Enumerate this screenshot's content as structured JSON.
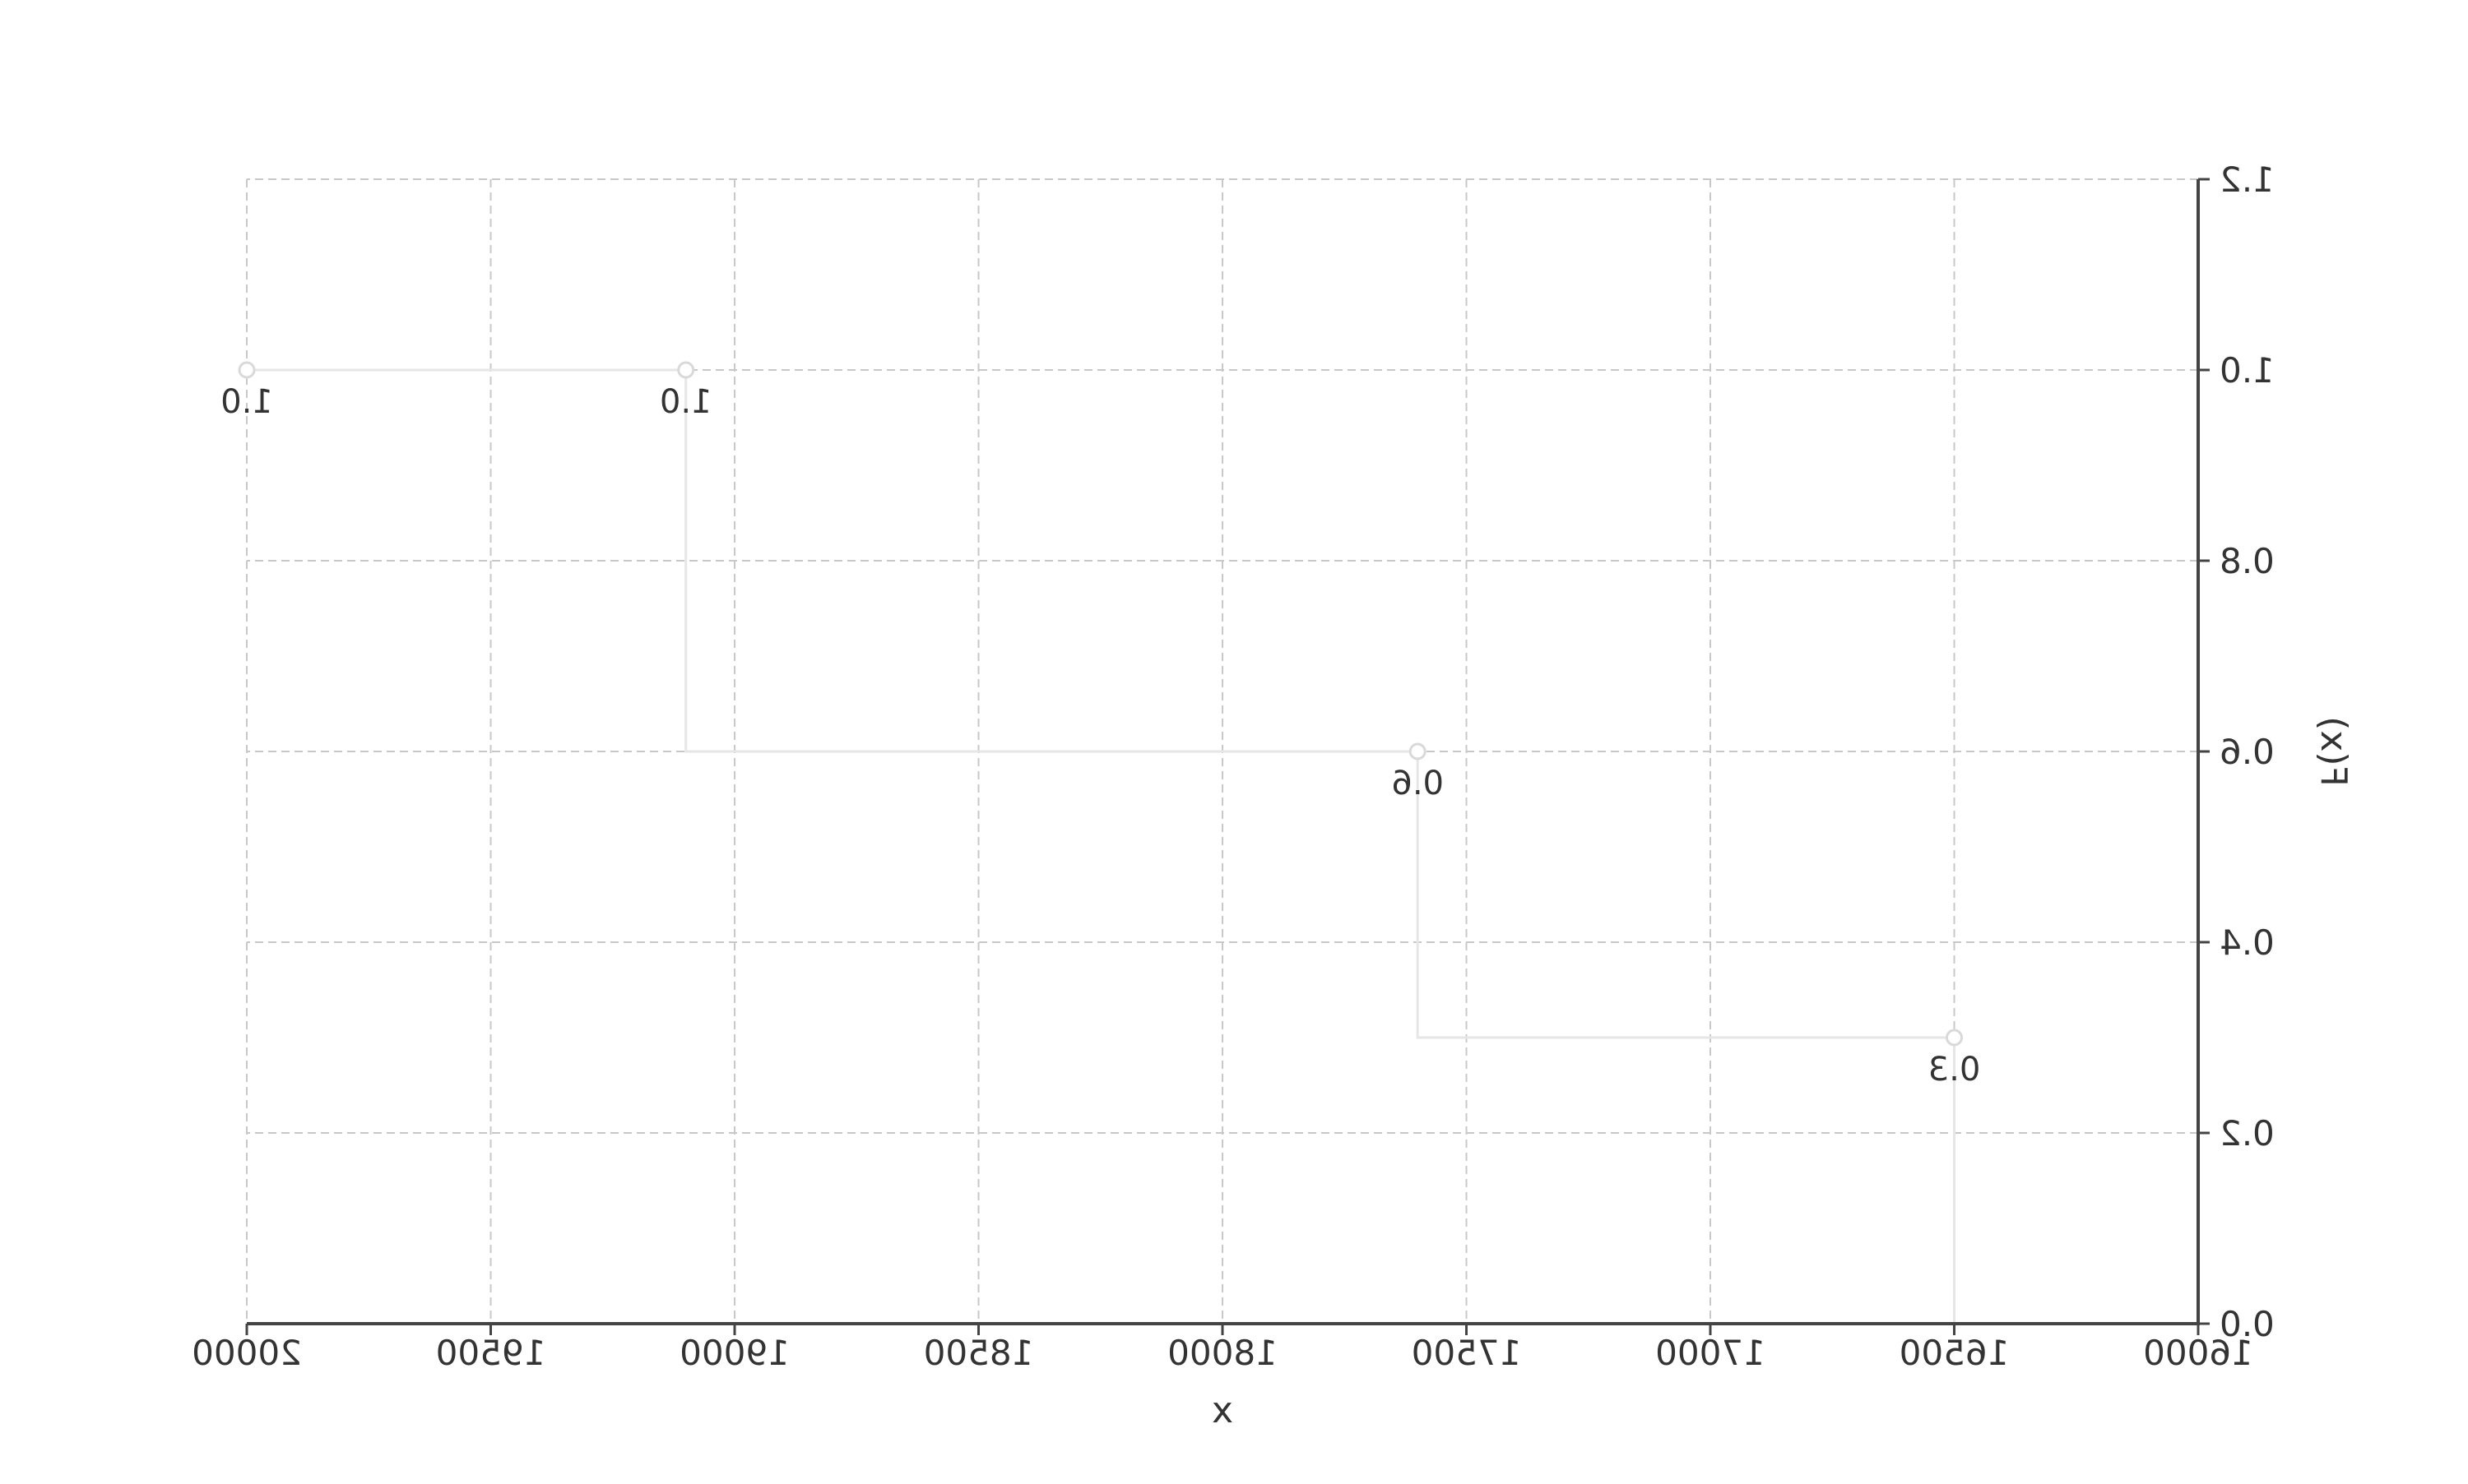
{
  "chart_data": {
    "type": "line",
    "subtype": "step-cdf",
    "title": "",
    "xlabel": "x",
    "ylabel": "F(x)",
    "xlim": [
      16000,
      20000
    ],
    "ylim": [
      0.0,
      1.2
    ],
    "grid": true,
    "x_ticks": [
      16000,
      16500,
      17000,
      17500,
      18000,
      18500,
      19000,
      19500,
      20000
    ],
    "x_tick_labels": [
      "16000",
      "16500",
      "17000",
      "17500",
      "18000",
      "18500",
      "19000",
      "19500",
      "20000"
    ],
    "y_ticks": [
      0.0,
      0.2,
      0.4,
      0.6,
      0.8,
      1.0,
      1.2
    ],
    "y_tick_labels": [
      "0.0",
      "0.2",
      "0.4",
      "0.6",
      "0.8",
      "1.0",
      "1.2"
    ],
    "series": [
      {
        "name": "F(x)",
        "points": [
          {
            "x": 16500,
            "y": 0.3,
            "label": "0.3"
          },
          {
            "x": 17600,
            "y": 0.6,
            "label": "0.6"
          },
          {
            "x": 19100,
            "y": 1.0,
            "label": "1.0"
          },
          {
            "x": 20000,
            "y": 1.0,
            "label": "1.0"
          }
        ]
      }
    ]
  }
}
